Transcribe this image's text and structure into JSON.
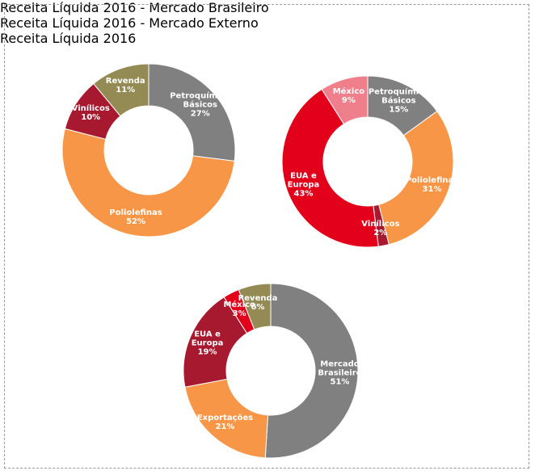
{
  "chart_data": [
    {
      "type": "pie",
      "title": "Receita Líquida 2016 -\nMercado Brasileiro",
      "categories": [
        "Petroquímico\nBásicos",
        "Poliolefinas",
        "Vinílicos",
        "Revenda"
      ],
      "values": [
        27,
        52,
        10,
        11
      ],
      "value_labels": [
        "27%",
        "52%",
        "10%",
        "11%"
      ],
      "colors": [
        "#808080",
        "#f79646",
        "#a6192e",
        "#948a54"
      ]
    },
    {
      "type": "pie",
      "title": "Receita Líquida 2016 -\nMercado Externo",
      "categories": [
        "Petroquímico\nBásicos",
        "Poliolefinas",
        "Vinílicos",
        "EUA e\nEuropa",
        "México"
      ],
      "values": [
        15,
        31,
        2,
        43,
        9
      ],
      "value_labels": [
        "15%",
        "31%",
        "2%",
        "43%",
        "9%"
      ],
      "colors": [
        "#808080",
        "#f79646",
        "#a6192e",
        "#e2001a",
        "#ee7f8b"
      ]
    },
    {
      "type": "pie",
      "title": "Receita Líquida 2016",
      "categories": [
        "Mercado\nBrasileiro",
        "Exportações",
        "EUA e\nEuropa",
        "México",
        "Revenda"
      ],
      "values": [
        51,
        21,
        19,
        3,
        6
      ],
      "value_labels": [
        "51%",
        "21%",
        "19%",
        "3%",
        "6%"
      ],
      "colors": [
        "#808080",
        "#f79646",
        "#a6192e",
        "#e2001a",
        "#948a54"
      ]
    }
  ]
}
